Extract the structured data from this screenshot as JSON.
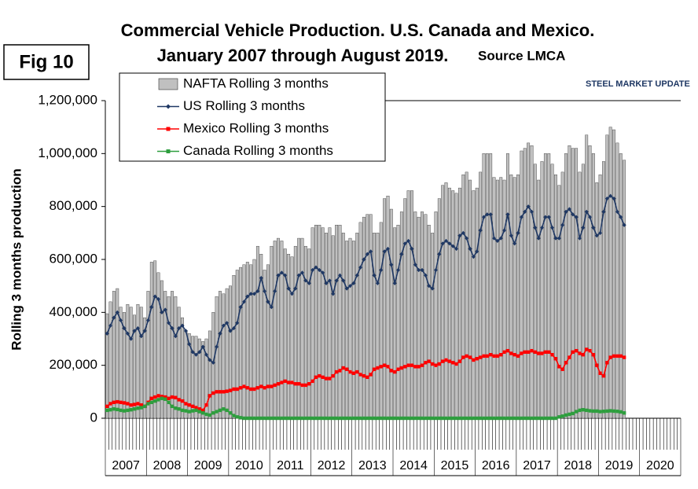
{
  "chart_data": {
    "type": "bar",
    "fig_label": "Fig 10",
    "title": "Commercial Vehicle Production. U.S. Canada and Mexico.",
    "subtitle": "January 2007 through August 2019.",
    "source": "Source LMCA",
    "logo": "STEEL MARKET UPDATE",
    "y_label": "Rolling 3 months production",
    "year_labels": [
      "2007",
      "2008",
      "2009",
      "2010",
      "2011",
      "2012",
      "2013",
      "2014",
      "2015",
      "2016",
      "2017",
      "2018",
      "2019",
      "2020"
    ],
    "ylim": [
      0,
      1200000
    ],
    "yticks": [
      0,
      {
        "value": 200000,
        "label": "200,000"
      },
      {
        "value": 400000,
        "label": "400,000"
      },
      {
        "value": 600000,
        "label": "600,000"
      },
      {
        "value": 800000,
        "label": "800,000"
      },
      {
        "value": 1000000,
        "label": "1,000,000"
      },
      {
        "value": 1200000,
        "label": "1,200,000"
      }
    ],
    "series": [
      {
        "name": "NAFTA Rolling 3 months",
        "type": "bar",
        "color": "#c0c0c0",
        "values": [
          395000,
          440000,
          480000,
          490000,
          420000,
          400000,
          430000,
          420000,
          390000,
          430000,
          420000,
          380000,
          480000,
          590000,
          595000,
          550000,
          520000,
          480000,
          460000,
          480000,
          460000,
          420000,
          380000,
          330000,
          320000,
          310000,
          310000,
          300000,
          290000,
          300000,
          330000,
          400000,
          460000,
          480000,
          470000,
          490000,
          500000,
          540000,
          560000,
          570000,
          580000,
          590000,
          580000,
          600000,
          650000,
          620000,
          560000,
          580000,
          650000,
          670000,
          680000,
          670000,
          640000,
          620000,
          610000,
          650000,
          680000,
          680000,
          650000,
          640000,
          720000,
          730000,
          730000,
          720000,
          700000,
          720000,
          690000,
          730000,
          730000,
          700000,
          670000,
          680000,
          670000,
          700000,
          740000,
          760000,
          770000,
          770000,
          700000,
          700000,
          740000,
          830000,
          840000,
          790000,
          720000,
          730000,
          780000,
          830000,
          860000,
          860000,
          780000,
          760000,
          780000,
          770000,
          730000,
          700000,
          780000,
          830000,
          880000,
          890000,
          870000,
          860000,
          850000,
          870000,
          920000,
          930000,
          900000,
          860000,
          870000,
          930000,
          1000000,
          1000000,
          1000000,
          910000,
          900000,
          910000,
          900000,
          1000000,
          920000,
          910000,
          920000,
          1010000,
          1020000,
          1040000,
          1030000,
          960000,
          900000,
          970000,
          1000000,
          1000000,
          960000,
          920000,
          880000,
          930000,
          1000000,
          1030000,
          1020000,
          1020000,
          930000,
          960000,
          1070000,
          1030000,
          1000000,
          890000,
          920000,
          970000,
          1070000,
          1100000,
          1090000,
          1040000,
          1000000,
          975000
        ]
      },
      {
        "name": "US Rolling 3 months",
        "type": "line",
        "marker": "diamond",
        "color": "#1f3864",
        "values": [
          320000,
          350000,
          380000,
          400000,
          370000,
          340000,
          320000,
          300000,
          330000,
          340000,
          310000,
          330000,
          370000,
          420000,
          460000,
          450000,
          400000,
          410000,
          360000,
          340000,
          310000,
          340000,
          350000,
          330000,
          280000,
          250000,
          240000,
          250000,
          270000,
          240000,
          220000,
          210000,
          270000,
          320000,
          350000,
          360000,
          330000,
          340000,
          360000,
          420000,
          440000,
          460000,
          470000,
          470000,
          480000,
          530000,
          480000,
          440000,
          420000,
          480000,
          540000,
          550000,
          540000,
          490000,
          470000,
          490000,
          540000,
          550000,
          520000,
          510000,
          560000,
          570000,
          560000,
          550000,
          510000,
          520000,
          470000,
          520000,
          540000,
          520000,
          490000,
          500000,
          510000,
          540000,
          570000,
          600000,
          620000,
          630000,
          540000,
          510000,
          560000,
          630000,
          640000,
          580000,
          510000,
          560000,
          620000,
          660000,
          670000,
          640000,
          580000,
          560000,
          560000,
          540000,
          500000,
          490000,
          560000,
          620000,
          660000,
          670000,
          660000,
          650000,
          640000,
          690000,
          700000,
          680000,
          640000,
          610000,
          630000,
          710000,
          760000,
          770000,
          770000,
          680000,
          670000,
          680000,
          710000,
          770000,
          690000,
          660000,
          700000,
          760000,
          780000,
          800000,
          780000,
          720000,
          680000,
          720000,
          760000,
          760000,
          720000,
          680000,
          680000,
          730000,
          780000,
          790000,
          770000,
          760000,
          680000,
          720000,
          780000,
          760000,
          720000,
          690000,
          700000,
          780000,
          830000,
          840000,
          830000,
          780000,
          760000,
          730000
        ]
      },
      {
        "name": "Mexico Rolling 3 months",
        "type": "line",
        "marker": "square",
        "color": "#ff0000",
        "values": [
          45000,
          55000,
          60000,
          62000,
          60000,
          58000,
          55000,
          50000,
          52000,
          55000,
          50000,
          45000,
          60000,
          75000,
          80000,
          85000,
          82000,
          80000,
          75000,
          80000,
          78000,
          70000,
          65000,
          55000,
          50000,
          45000,
          40000,
          35000,
          30000,
          50000,
          85000,
          95000,
          100000,
          100000,
          100000,
          102000,
          105000,
          110000,
          110000,
          115000,
          120000,
          115000,
          110000,
          110000,
          115000,
          120000,
          115000,
          120000,
          120000,
          125000,
          130000,
          135000,
          140000,
          135000,
          135000,
          130000,
          130000,
          125000,
          125000,
          130000,
          140000,
          155000,
          160000,
          155000,
          150000,
          150000,
          160000,
          175000,
          180000,
          190000,
          185000,
          175000,
          170000,
          175000,
          165000,
          160000,
          155000,
          165000,
          185000,
          190000,
          195000,
          200000,
          195000,
          180000,
          175000,
          185000,
          190000,
          195000,
          200000,
          200000,
          195000,
          195000,
          200000,
          210000,
          215000,
          205000,
          200000,
          205000,
          215000,
          220000,
          215000,
          210000,
          205000,
          215000,
          230000,
          235000,
          230000,
          220000,
          225000,
          230000,
          235000,
          235000,
          240000,
          235000,
          235000,
          240000,
          250000,
          255000,
          245000,
          240000,
          235000,
          245000,
          250000,
          250000,
          255000,
          250000,
          245000,
          245000,
          250000,
          250000,
          240000,
          225000,
          195000,
          185000,
          210000,
          230000,
          250000,
          255000,
          245000,
          240000,
          260000,
          255000,
          240000,
          200000,
          170000,
          160000,
          210000,
          230000,
          235000,
          235000,
          235000,
          230000
        ]
      },
      {
        "name": "Canada Rolling 3 months",
        "type": "line",
        "marker": "square",
        "color": "#2e9e3e",
        "values": [
          30000,
          32000,
          35000,
          33000,
          30000,
          28000,
          30000,
          32000,
          35000,
          38000,
          40000,
          45000,
          55000,
          60000,
          65000,
          70000,
          75000,
          72000,
          60000,
          45000,
          38000,
          35000,
          30000,
          28000,
          25000,
          28000,
          30000,
          25000,
          20000,
          15000,
          12000,
          20000,
          25000,
          30000,
          35000,
          30000,
          20000,
          10000,
          5000,
          2000,
          0,
          0,
          0,
          0,
          0,
          0,
          0,
          0,
          0,
          0,
          0,
          0,
          0,
          0,
          0,
          0,
          0,
          0,
          0,
          0,
          0,
          0,
          0,
          0,
          0,
          0,
          0,
          0,
          0,
          0,
          0,
          0,
          0,
          0,
          0,
          0,
          0,
          0,
          0,
          0,
          0,
          0,
          0,
          0,
          0,
          0,
          0,
          0,
          0,
          0,
          0,
          0,
          0,
          0,
          0,
          0,
          0,
          0,
          0,
          0,
          0,
          0,
          0,
          0,
          0,
          0,
          0,
          0,
          0,
          0,
          0,
          0,
          0,
          0,
          0,
          0,
          0,
          0,
          0,
          0,
          0,
          0,
          0,
          0,
          0,
          0,
          0,
          0,
          0,
          0,
          0,
          0,
          5000,
          8000,
          12000,
          15000,
          18000,
          25000,
          30000,
          32000,
          30000,
          28000,
          27000,
          27000,
          25000,
          26000,
          27000,
          28000,
          27000,
          26000,
          24000,
          20000
        ]
      }
    ]
  }
}
